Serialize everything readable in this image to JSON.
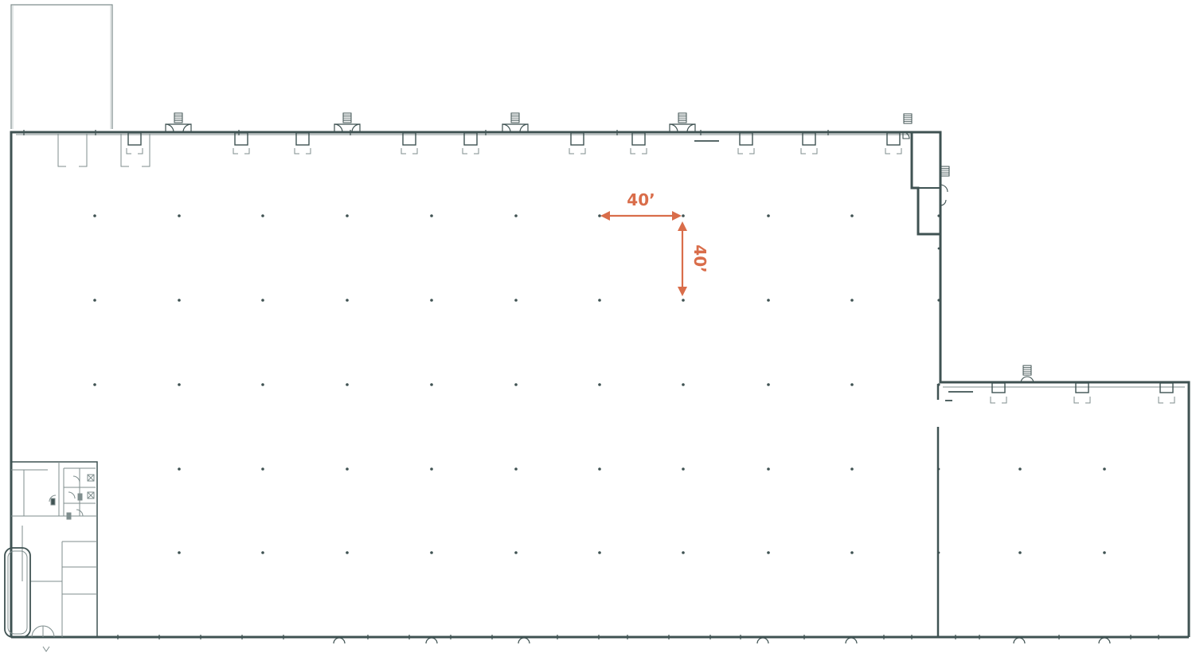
{
  "diagram": {
    "type": "warehouse floor plan",
    "colors": {
      "wall": "#3f5252",
      "thin_line": "#7f8e8e",
      "column": "#3f5252",
      "dimension_accent": "#d96d4a",
      "background": "#ffffff"
    },
    "column_spacing": {
      "horizontal_label": "40’",
      "vertical_label": "40’"
    },
    "main_building": {
      "column_grid": {
        "columns": 10,
        "rows": 5
      },
      "dock_doors": 12,
      "stair_markers": 5
    },
    "annex_building": {
      "column_grid": {
        "columns": 3,
        "rows": 3
      },
      "dock_doors": 3,
      "stair_markers": 1
    },
    "office_area": {
      "location": "bottom-left"
    },
    "icons": [
      "stair-icon",
      "door-swing-icon",
      "dock-door-icon",
      "column-dot-icon",
      "dimension-arrow-icon"
    ]
  }
}
